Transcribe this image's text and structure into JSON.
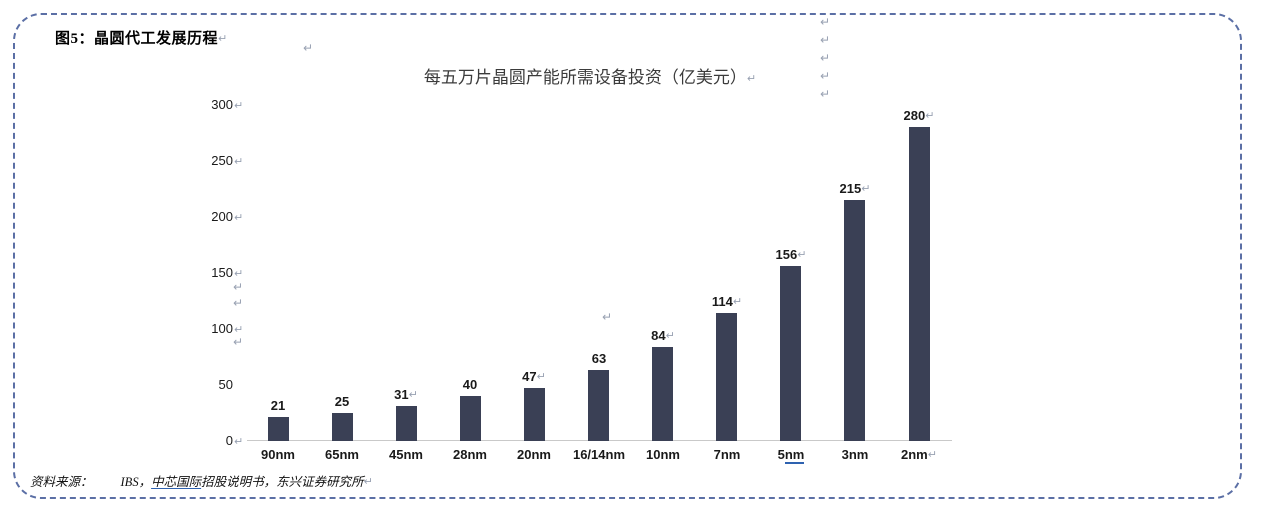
{
  "panel": {
    "figure_label": "图5：晶圆代工发展历程"
  },
  "chart_data": {
    "type": "bar",
    "title": "每五万片晶圆产能所需设备投资（亿美元）",
    "categories": [
      "90nm",
      "65nm",
      "45nm",
      "28nm",
      "20nm",
      "16/14nm",
      "10nm",
      "7nm",
      "5nm",
      "3nm",
      "2nm"
    ],
    "values": [
      21,
      25,
      31,
      40,
      47,
      63,
      84,
      114,
      156,
      215,
      280
    ],
    "xlabel": "",
    "ylabel": "",
    "ylim": [
      0,
      300
    ],
    "yticks": [
      0,
      50,
      100,
      150,
      200,
      250,
      300
    ],
    "grid": false,
    "legend": false,
    "value_labels_shown": true,
    "bar_color": "#3A4055",
    "axis_line_color": "#C9C9C9",
    "value_label_return_marks": [
      false,
      false,
      true,
      false,
      true,
      false,
      true,
      true,
      true,
      true,
      true
    ],
    "category_return_marks": [
      false,
      false,
      false,
      false,
      false,
      false,
      false,
      false,
      false,
      false,
      true
    ],
    "ytick_return_marks": [
      true,
      false,
      true,
      true,
      true,
      true,
      true
    ],
    "category_underline": {
      "index": 8,
      "prefix": "5",
      "underlined": "nm",
      "underline_color": "#2E62B0"
    }
  },
  "source": {
    "prefix": "资料来源：",
    "segments": [
      {
        "text": "IBS，",
        "underline": false
      },
      {
        "text": "中芯国际",
        "underline": true
      },
      {
        "text": "招股说明书，东兴证券研究所",
        "underline": false
      }
    ]
  },
  "marks": {
    "glyph": "↵",
    "color": "#98A1B2"
  },
  "colors": {
    "border": "#5B6FA5",
    "bar": "#3A4055",
    "link_underline": "#2E62B0",
    "axis_line": "#C9C9C9"
  }
}
